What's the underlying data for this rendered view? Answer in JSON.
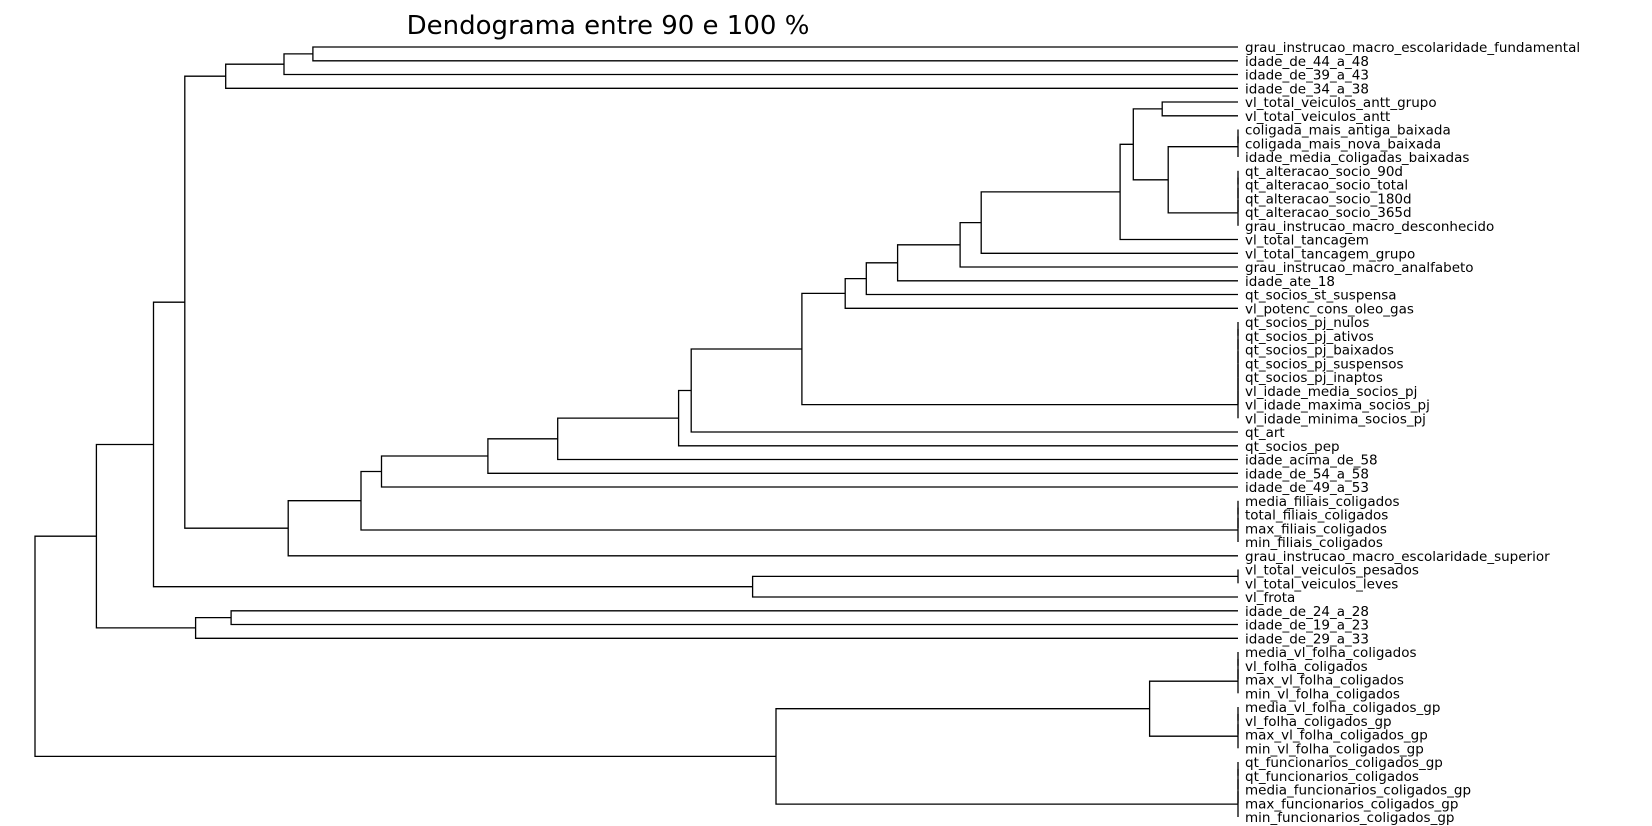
{
  "chart_data": {
    "type": "dendrogram",
    "title": "Dendograma entre 90 e 100 %",
    "orientation": "left",
    "xlim": [
      200,
      0
    ],
    "ticks": [
      200,
      175,
      150,
      125,
      100,
      75,
      50,
      25,
      0
    ],
    "line_color": "#000000",
    "leaves": [
      "grau_instrucao_macro_escolaridade_fundamental",
      "idade_de_44_a_48",
      "idade_de_39_a_43",
      "idade_de_34_a_38",
      "vl_total_veiculos_antt_grupo",
      "vl_total_veiculos_antt",
      "coligada_mais_antiga_baixada",
      "coligada_mais_nova_baixada",
      "idade_media_coligadas_baixadas",
      "qt_alteracao_socio_90d",
      "qt_alteracao_socio_total",
      "qt_alteracao_socio_180d",
      "qt_alteracao_socio_365d",
      "grau_instrucao_macro_desconhecido",
      "vl_total_tancagem",
      "vl_total_tancagem_grupo",
      "grau_instrucao_macro_analfabeto",
      "idade_ate_18",
      "qt_socios_st_suspensa",
      "vl_potenc_cons_oleo_gas",
      "qt_socios_pj_nulos",
      "qt_socios_pj_ativos",
      "qt_socios_pj_baixados",
      "qt_socios_pj_suspensos",
      "qt_socios_pj_inaptos",
      "vl_idade_media_socios_pj",
      "vl_idade_maxima_socios_pj",
      "vl_idade_minima_socios_pj",
      "qt_art",
      "qt_socios_pep",
      "idade_acima_de_58",
      "idade_de_54_a_58",
      "idade_de_49_a_53",
      "media_filiais_coligados",
      "total_filiais_coligados",
      "max_filiais_coligados",
      "min_filiais_coligados",
      "grau_instrucao_macro_escolaridade_superior",
      "vl_total_veiculos_pesados",
      "vl_total_veiculos_leves",
      "vl_frota",
      "idade_de_24_a_28",
      "idade_de_19_a_23",
      "idade_de_29_a_33",
      "media_vl_folha_coligados",
      "vl_folha_coligados",
      "max_vl_folha_coligados",
      "min_vl_folha_coligados",
      "media_vl_folha_coligados_gp",
      "vl_folha_coligados_gp",
      "max_vl_folha_coligados_gp",
      "min_vl_folha_coligados_gp",
      "qt_funcionarios_coligados_gp",
      "qt_funcionarios_coligados",
      "media_funcionarios_coligados_gp",
      "max_funcionarios_coligados_gp",
      "min_funcionarios_coligados_gp"
    ],
    "merges": [
      {
        "left": "L0",
        "right": "L1",
        "height": 153.8
      },
      {
        "left": "M0",
        "right": "L2",
        "height": 158.6
      },
      {
        "left": "M1",
        "right": "L3",
        "height": 168.3
      },
      {
        "left": "L4",
        "right": "L5",
        "height": 12.6
      },
      {
        "left": "L6",
        "right": "L7",
        "height": 0
      },
      {
        "left": "M4",
        "right": "L8",
        "height": 0
      },
      {
        "left": "L9",
        "right": "L10",
        "height": 0
      },
      {
        "left": "M6",
        "right": "L11",
        "height": 0
      },
      {
        "left": "M7",
        "right": "L12",
        "height": 0
      },
      {
        "left": "M8",
        "right": "L13",
        "height": 0
      },
      {
        "left": "M5",
        "right": "M9",
        "height": 11.6
      },
      {
        "left": "M3",
        "right": "M10",
        "height": 17.4
      },
      {
        "left": "M11",
        "right": "L14",
        "height": 19.6
      },
      {
        "left": "M12",
        "right": "L15",
        "height": 42.7
      },
      {
        "left": "M13",
        "right": "L16",
        "height": 46.2
      },
      {
        "left": "M14",
        "right": "L17",
        "height": 56.6
      },
      {
        "left": "M15",
        "right": "L18",
        "height": 61.8
      },
      {
        "left": "M16",
        "right": "L19",
        "height": 65.3
      },
      {
        "left": "L20",
        "right": "L21",
        "height": 0
      },
      {
        "left": "M18",
        "right": "L22",
        "height": 0
      },
      {
        "left": "M19",
        "right": "L23",
        "height": 0
      },
      {
        "left": "M20",
        "right": "L24",
        "height": 0
      },
      {
        "left": "M21",
        "right": "L25",
        "height": 0
      },
      {
        "left": "M22",
        "right": "L26",
        "height": 0
      },
      {
        "left": "M23",
        "right": "L27",
        "height": 0
      },
      {
        "left": "M17",
        "right": "M24",
        "height": 72.5
      },
      {
        "left": "M25",
        "right": "L28",
        "height": 90.9
      },
      {
        "left": "M26",
        "right": "L29",
        "height": 93.0
      },
      {
        "left": "M27",
        "right": "L30",
        "height": 113.1
      },
      {
        "left": "M28",
        "right": "L31",
        "height": 124.7
      },
      {
        "left": "M29",
        "right": "L32",
        "height": 142.4
      },
      {
        "left": "L33",
        "right": "L34",
        "height": 0
      },
      {
        "left": "M31",
        "right": "L35",
        "height": 0
      },
      {
        "left": "M32",
        "right": "L36",
        "height": 0
      },
      {
        "left": "M30",
        "right": "M33",
        "height": 145.8
      },
      {
        "left": "M34",
        "right": "L37",
        "height": 157.9
      },
      {
        "left": "M2",
        "right": "M35",
        "height": 175.1
      },
      {
        "left": "L38",
        "right": "L39",
        "height": 0
      },
      {
        "left": "M37",
        "right": "L40",
        "height": 80.7
      },
      {
        "left": "M36",
        "right": "M38",
        "height": 180.3
      },
      {
        "left": "L41",
        "right": "L42",
        "height": 167.4
      },
      {
        "left": "M40",
        "right": "L43",
        "height": 173.3
      },
      {
        "left": "M39",
        "right": "M41",
        "height": 189.8
      },
      {
        "left": "L44",
        "right": "L45",
        "height": 0
      },
      {
        "left": "M43",
        "right": "L46",
        "height": 0
      },
      {
        "left": "M44",
        "right": "L47",
        "height": 0
      },
      {
        "left": "L48",
        "right": "L49",
        "height": 0
      },
      {
        "left": "M46",
        "right": "L50",
        "height": 0
      },
      {
        "left": "M47",
        "right": "L51",
        "height": 0
      },
      {
        "left": "M45",
        "right": "M48",
        "height": 14.7
      },
      {
        "left": "L52",
        "right": "L53",
        "height": 0
      },
      {
        "left": "M50",
        "right": "L54",
        "height": 0
      },
      {
        "left": "M51",
        "right": "L55",
        "height": 0
      },
      {
        "left": "M52",
        "right": "L56",
        "height": 0
      },
      {
        "left": "M49",
        "right": "M53",
        "height": 76.8
      },
      {
        "left": "M42",
        "right": "M54",
        "height": 200
      }
    ]
  }
}
